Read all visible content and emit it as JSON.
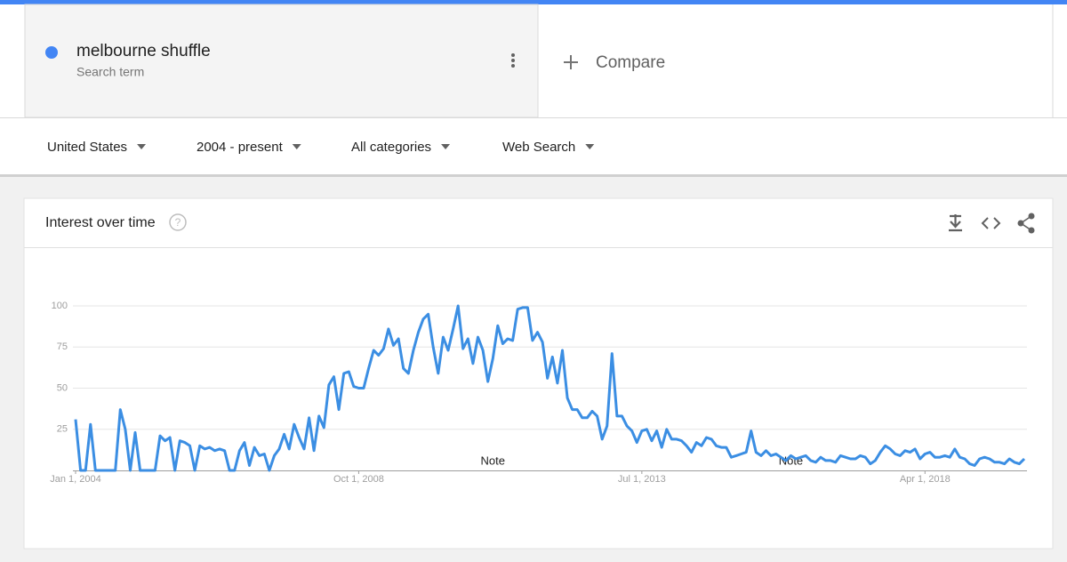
{
  "search_term": {
    "name": "melbourne shuffle",
    "subtitle": "Search term"
  },
  "compare": "Compare",
  "filters": [
    "United States",
    "2004 - present",
    "All categories",
    "Web Search"
  ],
  "chart_data": {
    "type": "line",
    "title": "Interest over time",
    "color": "#3b8ee3",
    "grid": true,
    "ylim": [
      0,
      100
    ],
    "yticks": [
      25,
      50,
      75,
      100
    ],
    "xlim": [
      0,
      191
    ],
    "xticks": [
      {
        "value": 0,
        "label": "Jan 1, 2004"
      },
      {
        "value": 57,
        "label": "Oct 1, 2008"
      },
      {
        "value": 114,
        "label": "Jul 1, 2013"
      },
      {
        "value": 171,
        "label": "Apr 1, 2018"
      }
    ],
    "annotations": [
      {
        "x": 84,
        "text": "Note"
      },
      {
        "x": 144,
        "text": "Note"
      }
    ],
    "values": [
      31,
      0,
      0,
      28,
      0,
      0,
      0,
      0,
      0,
      37,
      25,
      0,
      23,
      0,
      0,
      0,
      0,
      21,
      18,
      20,
      0,
      18,
      17,
      15,
      0,
      15,
      13,
      14,
      12,
      13,
      12,
      0,
      0,
      12,
      17,
      3,
      14,
      9,
      10,
      0,
      9,
      13,
      22,
      13,
      28,
      20,
      13,
      32,
      12,
      33,
      26,
      52,
      57,
      37,
      59,
      60,
      51,
      50,
      50,
      62,
      73,
      70,
      74,
      86,
      76,
      80,
      62,
      59,
      73,
      84,
      92,
      95,
      75,
      59,
      81,
      73,
      86,
      100,
      74,
      80,
      65,
      81,
      73,
      54,
      68,
      88,
      77,
      80,
      79,
      98,
      99,
      99,
      79,
      84,
      78,
      56,
      69,
      53,
      73,
      44,
      37,
      37,
      32,
      32,
      36,
      33,
      19,
      27,
      71,
      33,
      33,
      27,
      24,
      17,
      24,
      25,
      18,
      24,
      14,
      25,
      19,
      19,
      18,
      15,
      11,
      17,
      15,
      20,
      19,
      15,
      14,
      14,
      8,
      9,
      10,
      11,
      24,
      11,
      9,
      12,
      9,
      10,
      8,
      6,
      9,
      7,
      8,
      9,
      6,
      5,
      8,
      6,
      6,
      5,
      9,
      8,
      7,
      7,
      9,
      8,
      4,
      6,
      11,
      15,
      13,
      10,
      9,
      12,
      11,
      13,
      7,
      10,
      11,
      8,
      8,
      9,
      8,
      13,
      8,
      7,
      4,
      3,
      7,
      8,
      7,
      5,
      5,
      4,
      7,
      5,
      4,
      7
    ]
  }
}
